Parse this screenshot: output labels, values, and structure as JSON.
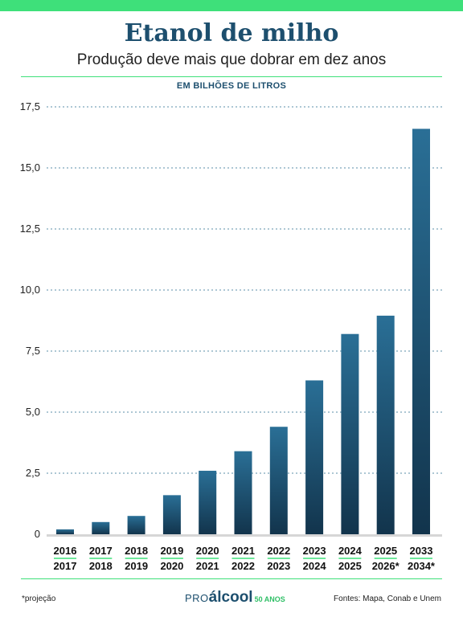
{
  "header": {
    "title": "Etanol de milho",
    "subtitle": "Produção deve mais que dobrar em dez anos",
    "unit_label": "EM BILHÕES DE LITROS"
  },
  "footer": {
    "footnote": "*projeção",
    "sources": "Fontes: Mapa, Conab e Unem",
    "brand_prefix": "PRO",
    "brand_main": "álcool",
    "brand_tag": "50 ANOS"
  },
  "colors": {
    "accent": "#3ee07a",
    "bar_top": "#2a6f96",
    "bar_bottom": "#12344c",
    "title": "#1d4f6e"
  },
  "chart_data": {
    "type": "bar",
    "title": "Etanol de milho",
    "ylabel": "EM BILHÕES DE LITROS",
    "ylim": [
      0,
      17.5
    ],
    "yticks": [
      0,
      2.5,
      5,
      7.5,
      10,
      12.5,
      15,
      17.5
    ],
    "ytick_labels": [
      "0",
      "2,5",
      "5,0",
      "7,5",
      "10,0",
      "12,5",
      "15,0",
      "17,5"
    ],
    "grid": true,
    "categories": [
      [
        "2016",
        "2017"
      ],
      [
        "2017",
        "2018"
      ],
      [
        "2018",
        "2019"
      ],
      [
        "2019",
        "2020"
      ],
      [
        "2020",
        "2021"
      ],
      [
        "2021",
        "2022"
      ],
      [
        "2022",
        "2023"
      ],
      [
        "2023",
        "2024"
      ],
      [
        "2024",
        "2025"
      ],
      [
        "2025",
        "2026*"
      ],
      [
        "2033",
        "2034*"
      ]
    ],
    "values": [
      0.2,
      0.5,
      0.75,
      1.6,
      2.6,
      3.4,
      4.4,
      6.3,
      8.2,
      8.95,
      16.6
    ]
  }
}
